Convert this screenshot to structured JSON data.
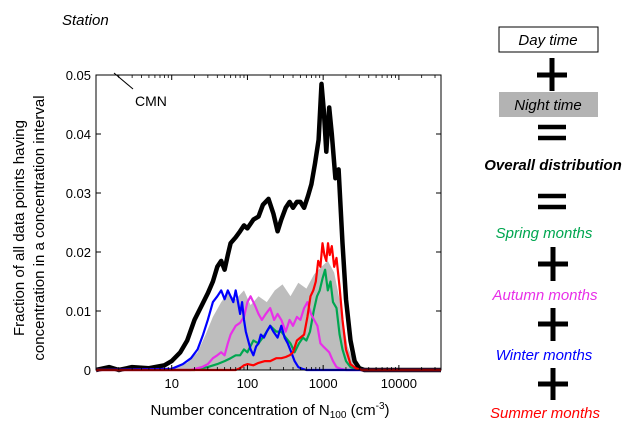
{
  "chart_data": {
    "type": "line",
    "station_label": "Station",
    "panel_label": "CMN",
    "ylabel_line1": "Fraction of all data points having",
    "ylabel_line2": "concentration in a concentration interval",
    "xlabel": {
      "prefix": "Number concentration of N",
      "subscript": "100",
      "unit_open": " (cm",
      "unit_sup": "-3",
      "unit_close": ")"
    },
    "xscale": "log",
    "xlim": [
      1,
      36000
    ],
    "ylim": [
      0,
      0.05
    ],
    "xticks": [
      {
        "value": 10,
        "label": "10"
      },
      {
        "value": 100,
        "label": "100"
      },
      {
        "value": 1000,
        "label": "1000"
      },
      {
        "value": 10000,
        "label": "10000"
      }
    ],
    "yticks": [
      {
        "value": 0,
        "label": "0"
      },
      {
        "value": 0.01,
        "label": "0.01"
      },
      {
        "value": 0.02,
        "label": "0.02"
      },
      {
        "value": 0.03,
        "label": "0.03"
      },
      {
        "value": 0.04,
        "label": "0.04"
      },
      {
        "value": 0.05,
        "label": "0.05"
      }
    ],
    "grid": false,
    "series": [
      {
        "key": "night",
        "style": "area",
        "color": "#bdbdbd",
        "x": [
          1,
          10,
          16,
          22,
          28,
          35,
          45,
          55,
          70,
          90,
          110,
          140,
          180,
          230,
          290,
          370,
          470,
          600,
          760,
          950,
          1150,
          1400,
          1700,
          2100,
          2600,
          3200,
          4000,
          36000
        ],
        "y": [
          0,
          0.0004,
          0.0012,
          0.003,
          0.006,
          0.009,
          0.0115,
          0.013,
          0.012,
          0.0135,
          0.011,
          0.0125,
          0.0115,
          0.0135,
          0.0145,
          0.0125,
          0.0148,
          0.0138,
          0.0162,
          0.0175,
          0.0185,
          0.0165,
          0.011,
          0.004,
          0.001,
          0.0002,
          0,
          0
        ]
      },
      {
        "key": "overall",
        "style": "line",
        "color": "#000000",
        "width": 4.5,
        "x": [
          1,
          1.5,
          2,
          3,
          5,
          8,
          10,
          13,
          16,
          20,
          25,
          30,
          35,
          40,
          45,
          50,
          55,
          60,
          70,
          80,
          90,
          100,
          120,
          140,
          160,
          190,
          220,
          250,
          280,
          320,
          360,
          400,
          450,
          500,
          560,
          630,
          700,
          780,
          870,
          950,
          1020,
          1100,
          1200,
          1300,
          1450,
          1600,
          1800,
          2000,
          2300,
          2600,
          3000,
          3500,
          4000,
          36000
        ],
        "y": [
          0,
          0.0005,
          0,
          0.0005,
          0.0003,
          0.0008,
          0.0015,
          0.003,
          0.005,
          0.0085,
          0.011,
          0.013,
          0.015,
          0.0175,
          0.0185,
          0.017,
          0.0195,
          0.0215,
          0.0225,
          0.0235,
          0.0245,
          0.024,
          0.0255,
          0.026,
          0.028,
          0.029,
          0.0265,
          0.0235,
          0.0255,
          0.0275,
          0.0285,
          0.0275,
          0.0285,
          0.0285,
          0.0275,
          0.0295,
          0.0315,
          0.035,
          0.039,
          0.0485,
          0.044,
          0.037,
          0.0445,
          0.04,
          0.0325,
          0.034,
          0.0215,
          0.012,
          0.005,
          0.0015,
          0.0003,
          0,
          0,
          0
        ]
      },
      {
        "key": "spring",
        "style": "line",
        "color": "#00a650",
        "width": 2.2,
        "x": [
          1,
          20,
          30,
          40,
          50,
          60,
          70,
          80,
          90,
          100,
          120,
          140,
          170,
          200,
          240,
          280,
          320,
          370,
          420,
          480,
          540,
          600,
          670,
          750,
          830,
          900,
          980,
          1060,
          1150,
          1250,
          1350,
          1500,
          1650,
          1800,
          2000,
          2300,
          2700,
          3200,
          36000
        ],
        "y": [
          0,
          0,
          0.0005,
          0.001,
          0.0015,
          0.002,
          0.0025,
          0.0025,
          0.0035,
          0.003,
          0.005,
          0.0045,
          0.006,
          0.0075,
          0.0065,
          0.0065,
          0.0055,
          0.0045,
          0.003,
          0.0045,
          0.0055,
          0.005,
          0.0065,
          0.01,
          0.0125,
          0.0135,
          0.0155,
          0.017,
          0.0135,
          0.015,
          0.0115,
          0.0105,
          0.006,
          0.0035,
          0.0015,
          0.0005,
          0.0001,
          0,
          0
        ]
      },
      {
        "key": "autumn",
        "style": "line",
        "color": "#e830e8",
        "width": 2.2,
        "x": [
          1,
          18,
          25,
          30,
          35,
          40,
          45,
          50,
          55,
          60,
          70,
          80,
          90,
          100,
          110,
          125,
          140,
          155,
          175,
          200,
          225,
          250,
          280,
          320,
          360,
          400,
          450,
          500,
          560,
          620,
          690,
          760,
          840,
          920,
          1000,
          1100,
          1200,
          1350,
          1500,
          1700,
          2000,
          2400,
          36000
        ],
        "y": [
          0,
          0,
          0.0005,
          0.001,
          0.002,
          0.0025,
          0.003,
          0.0025,
          0.0045,
          0.006,
          0.0075,
          0.008,
          0.009,
          0.0115,
          0.0125,
          0.011,
          0.0095,
          0.0085,
          0.0095,
          0.0105,
          0.0085,
          0.0095,
          0.0085,
          0.0065,
          0.0085,
          0.0075,
          0.009,
          0.0085,
          0.0105,
          0.0115,
          0.0095,
          0.0085,
          0.0075,
          0.0045,
          0.004,
          0.0035,
          0.003,
          0.0015,
          0.0005,
          0.0002,
          0,
          0,
          0
        ]
      },
      {
        "key": "winter",
        "style": "line",
        "color": "#0000ff",
        "width": 2.2,
        "x": [
          1,
          10,
          14,
          18,
          22,
          26,
          30,
          35,
          40,
          45,
          50,
          55,
          60,
          65,
          70,
          75,
          80,
          85,
          90,
          95,
          100,
          110,
          120,
          130,
          140,
          150,
          165,
          180,
          200,
          220,
          250,
          280,
          310,
          340,
          380,
          420,
          470,
          530,
          600,
          36000
        ],
        "y": [
          0,
          0.0002,
          0.001,
          0.002,
          0.0035,
          0.006,
          0.0085,
          0.0115,
          0.0125,
          0.0135,
          0.012,
          0.0135,
          0.0125,
          0.0115,
          0.0135,
          0.0115,
          0.0095,
          0.0115,
          0.0085,
          0.0065,
          0.0055,
          0.0035,
          0.0025,
          0.004,
          0.0045,
          0.006,
          0.0055,
          0.0065,
          0.0075,
          0.0065,
          0.0055,
          0.0075,
          0.0055,
          0.0045,
          0.003,
          0.0015,
          0.0005,
          0.0002,
          0,
          0
        ]
      },
      {
        "key": "summer",
        "style": "line",
        "color": "#ff0000",
        "width": 2.2,
        "x": [
          1,
          70,
          80,
          90,
          100,
          120,
          140,
          170,
          200,
          240,
          280,
          320,
          360,
          400,
          450,
          500,
          560,
          620,
          680,
          740,
          800,
          860,
          920,
          980,
          1040,
          1100,
          1160,
          1220,
          1300,
          1400,
          1500,
          1650,
          1800,
          2000,
          2300,
          2700,
          3200,
          36000
        ],
        "y": [
          0,
          0,
          0.0003,
          0.0008,
          0.001,
          0.0008,
          0.0012,
          0.0015,
          0.0015,
          0.002,
          0.002,
          0.0022,
          0.0025,
          0.003,
          0.005,
          0.0055,
          0.006,
          0.009,
          0.0125,
          0.0135,
          0.015,
          0.0185,
          0.0175,
          0.0215,
          0.0195,
          0.0185,
          0.0215,
          0.0195,
          0.021,
          0.0175,
          0.019,
          0.014,
          0.0085,
          0.0035,
          0.001,
          0.0003,
          0,
          0
        ]
      }
    ]
  },
  "legend": {
    "day": {
      "label": "Day time"
    },
    "night": {
      "label": "Night time",
      "fill": "#b3b3b3"
    },
    "overall": {
      "label": "Overall distribution"
    },
    "spring": {
      "label": "Spring months",
      "color": "#00a650"
    },
    "autumn": {
      "label": "Autumn months",
      "color": "#e830e8"
    },
    "winter": {
      "label": "Winter months",
      "color": "#0000ff"
    },
    "summer": {
      "label": "Summer months",
      "color": "#ff0000"
    }
  }
}
